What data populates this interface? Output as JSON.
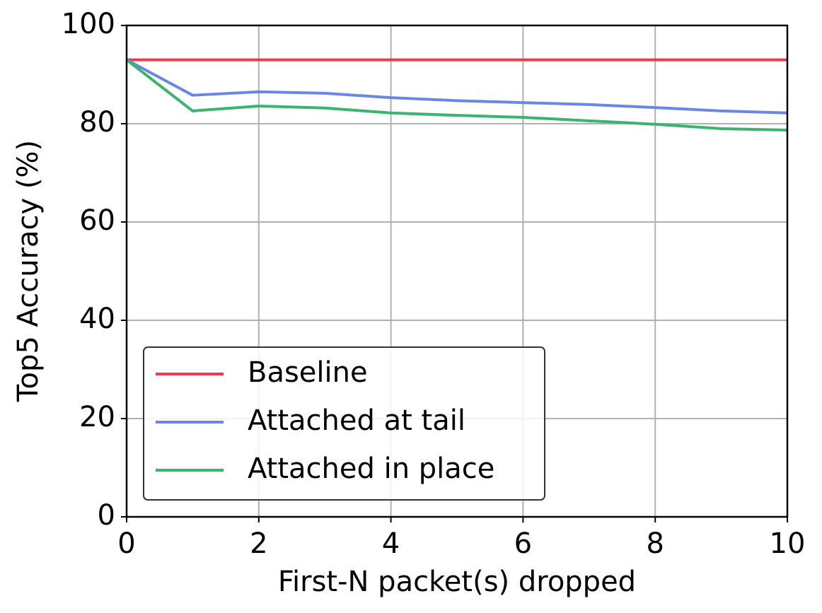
{
  "chart_data": {
    "type": "line",
    "xlabel": "First-N packet(s) dropped",
    "ylabel": "Top5 Accuracy (%)",
    "x": [
      0,
      1,
      2,
      3,
      4,
      5,
      6,
      7,
      8,
      9,
      10
    ],
    "series": [
      {
        "name": "Baseline",
        "color": "#ef3b45",
        "values": [
          93,
          93,
          93,
          93,
          93,
          93,
          93,
          93,
          93,
          93,
          93
        ]
      },
      {
        "name": "Attached at tail",
        "color": "#6b87e6",
        "values": [
          93,
          85.8,
          86.5,
          86.2,
          85.3,
          84.7,
          84.3,
          83.9,
          83.3,
          82.6,
          82.2
        ]
      },
      {
        "name": "Attached in place",
        "color": "#3cb371",
        "values": [
          93,
          82.6,
          83.6,
          83.2,
          82.2,
          81.7,
          81.3,
          80.6,
          79.9,
          79.0,
          78.7
        ]
      }
    ],
    "xlim": [
      0,
      10
    ],
    "xticks": [
      0,
      2,
      4,
      6,
      8,
      10
    ],
    "ylim": [
      0,
      100
    ],
    "yticks": [
      0,
      20,
      40,
      60,
      80,
      100
    ],
    "grid": true,
    "legend": "lower left"
  }
}
